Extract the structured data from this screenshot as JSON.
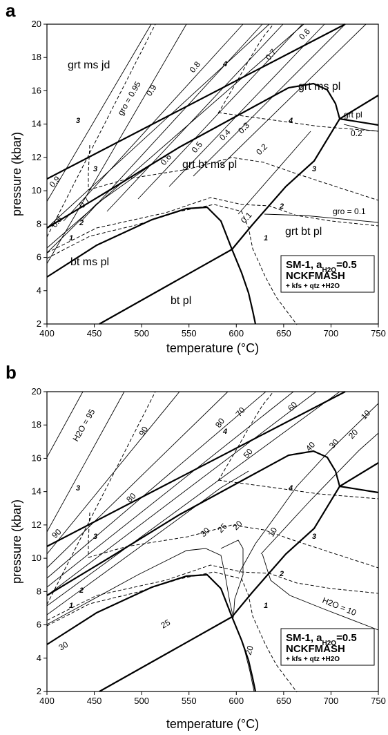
{
  "panels": [
    {
      "id": "a",
      "letter": "a",
      "xlabel": "temperature (°C)",
      "ylabel": "pressure (kbar)",
      "xticks": [
        "400",
        "450",
        "500",
        "550",
        "600",
        "650",
        "700",
        "750"
      ],
      "yticks": [
        "2",
        "4",
        "6",
        "8",
        "10",
        "12",
        "14",
        "16",
        "18",
        "20"
      ],
      "legend": {
        "title": "SM-1, a",
        "sub_text": "H2O",
        "title_end": "=0.5",
        "line2": "NCKFMASH",
        "line3": "+ kfs + qtz +H2O"
      },
      "fields": [
        "grt ms jd",
        "grt ms pl",
        "grt pl",
        "grt bt ms pl",
        "grt bt pl",
        "bt ms pl",
        "bt pl"
      ],
      "isopleth_labels": [
        "gro = 0.95",
        "0.9",
        "0.8",
        "0.7",
        "0.6",
        "0.9",
        "0.8",
        "0.7",
        "0.6",
        "0.5",
        "0.4",
        "0.3",
        "0.2",
        "0.1",
        "0.2",
        "gro = 0.1"
      ],
      "reaction_labels": [
        "3",
        "4",
        "3",
        "2",
        "1",
        "3",
        "4",
        "2",
        "1"
      ]
    },
    {
      "id": "b",
      "letter": "b",
      "xlabel": "temperature (°C)",
      "ylabel": "pressure (kbar)",
      "xticks": [
        "400",
        "450",
        "500",
        "550",
        "600",
        "650",
        "700",
        "750"
      ],
      "yticks": [
        "2",
        "4",
        "6",
        "8",
        "10",
        "12",
        "14",
        "16",
        "18",
        "20"
      ],
      "legend": {
        "title": "SM-1, a",
        "sub_text": "H2O",
        "title_end": "=0.5",
        "line2": "NCKFMASH",
        "line3": "+ kfs + qtz +H2O"
      },
      "isopleth_labels": [
        "H2O = 95",
        "90",
        "80",
        "70",
        "60",
        "50",
        "40",
        "30",
        "20",
        "10",
        "90",
        "80",
        "30",
        "25",
        "20",
        "10",
        "30",
        "25",
        "20",
        "H2O = 10"
      ],
      "reaction_labels": [
        "3",
        "4",
        "3",
        "2",
        "1",
        "3",
        "4",
        "2",
        "1"
      ]
    }
  ],
  "chart_data": [
    {
      "type": "line",
      "panel": "a",
      "xlabel": "temperature (°C)",
      "ylabel": "pressure (kbar)",
      "xlim": [
        400,
        750
      ],
      "ylim": [
        2,
        20
      ],
      "boundaries": [
        {
          "x": [
            400,
            715
          ],
          "y": [
            10.8,
            20.0
          ]
        },
        {
          "x": [
            400,
            470,
            540,
            600,
            640,
            675,
            700,
            710,
            712
          ],
          "y": [
            7.8,
            10.9,
            13.6,
            15.5,
            16.2,
            16.4,
            16.0,
            15.2,
            14.4
          ]
        },
        {
          "x": [
            400,
            480,
            540,
            570,
            600,
            610
          ],
          "y": [
            4.9,
            7.4,
            8.9,
            9.2,
            8.7,
            6.5
          ]
        },
        {
          "x": [
            475,
            610
          ],
          "y": [
            2.0,
            6.5
          ]
        },
        {
          "x": [
            610,
            620,
            630,
            635
          ],
          "y": [
            6.5,
            4.8,
            3.0,
            2.0
          ]
        },
        {
          "x": [
            610,
            640,
            690,
            750
          ],
          "y": [
            6.5,
            9.8,
            13.0,
            15.8
          ]
        },
        {
          "x": [
            712,
            750
          ],
          "y": [
            14.4,
            14.0
          ]
        }
      ],
      "reactions": [
        {
          "label": "3",
          "x": [
            400,
            460
          ],
          "y": [
            5.5,
            12.8
          ]
        },
        {
          "label": "3",
          "x": [
            460,
            470,
            520,
            580,
            640,
            700,
            750
          ],
          "y": [
            12.6,
            10.2,
            11.1,
            11.6,
            11.6,
            10.4,
            8.7
          ]
        },
        {
          "label": "4",
          "x": [
            610,
            660,
            710,
            750
          ],
          "y": [
            15.3,
            14.6,
            14.0,
            13.8
          ]
        },
        {
          "label": "2",
          "x": [
            400,
            470,
            540,
            590,
            620,
            640,
            700,
            750
          ],
          "y": [
            6.1,
            8.4,
            9.5,
            9.7,
            8.8,
            8.6,
            7.9,
            6.9
          ]
        },
        {
          "label": "1",
          "x": [
            400,
            460,
            520,
            560,
            600,
            630,
            650,
            665
          ],
          "y": [
            5.7,
            7.6,
            8.8,
            9.1,
            8.9,
            6.6,
            4.2,
            2.0
          ]
        }
      ],
      "isopleths": [
        {
          "label": "gro = 0.95",
          "x": [
            400,
            525
          ],
          "y": [
            12.2,
            20.0
          ]
        },
        {
          "label": "gro = 0.1",
          "x": [
            610,
            660,
            750
          ],
          "y": [
            8.8,
            8.7,
            8.2
          ]
        }
      ]
    },
    {
      "type": "line",
      "panel": "b",
      "xlabel": "temperature (°C)",
      "ylabel": "pressure (kbar)",
      "xlim": [
        400,
        750
      ],
      "ylim": [
        2,
        20
      ],
      "boundaries": [
        {
          "x": [
            400,
            715
          ],
          "y": [
            10.8,
            20.0
          ]
        },
        {
          "x": [
            400,
            470,
            540,
            600,
            640,
            675,
            700,
            710,
            712
          ],
          "y": [
            7.8,
            10.9,
            13.6,
            15.5,
            16.2,
            16.4,
            16.0,
            15.2,
            14.4
          ]
        },
        {
          "x": [
            400,
            480,
            540,
            570,
            600,
            610
          ],
          "y": [
            4.9,
            7.4,
            8.9,
            9.2,
            8.7,
            6.5
          ]
        },
        {
          "x": [
            475,
            610
          ],
          "y": [
            2.0,
            6.5
          ]
        },
        {
          "x": [
            610,
            620,
            630,
            635
          ],
          "y": [
            6.5,
            4.8,
            3.0,
            2.0
          ]
        },
        {
          "x": [
            610,
            640,
            690,
            750
          ],
          "y": [
            6.5,
            9.8,
            13.0,
            15.8
          ]
        },
        {
          "x": [
            712,
            750
          ],
          "y": [
            14.4,
            14.0
          ]
        }
      ],
      "reactions": [
        {
          "label": "3",
          "x": [
            400,
            460
          ],
          "y": [
            5.5,
            12.8
          ]
        },
        {
          "label": "3",
          "x": [
            460,
            470,
            520,
            580,
            640,
            700,
            750
          ],
          "y": [
            12.6,
            10.2,
            11.1,
            11.6,
            11.6,
            10.4,
            8.7
          ]
        },
        {
          "label": "4",
          "x": [
            610,
            660,
            710,
            750
          ],
          "y": [
            15.3,
            14.6,
            14.0,
            13.8
          ]
        },
        {
          "label": "2",
          "x": [
            400,
            470,
            540,
            590,
            620,
            640,
            700,
            750
          ],
          "y": [
            6.1,
            8.4,
            9.5,
            9.7,
            8.8,
            8.6,
            7.9,
            6.9
          ]
        },
        {
          "label": "1",
          "x": [
            400,
            460,
            520,
            560,
            600,
            630,
            650,
            665
          ],
          "y": [
            5.7,
            7.6,
            8.8,
            9.1,
            8.9,
            6.6,
            4.2,
            2.0
          ]
        }
      ],
      "isopleths": [
        {
          "label": "H2O = 10",
          "x": [
            640,
            750
          ],
          "y": [
            9.2,
            6.7
          ]
        },
        {
          "label": "25",
          "x": [
            400,
            610
          ],
          "y": [
            2.0,
            6.5
          ]
        }
      ]
    }
  ]
}
